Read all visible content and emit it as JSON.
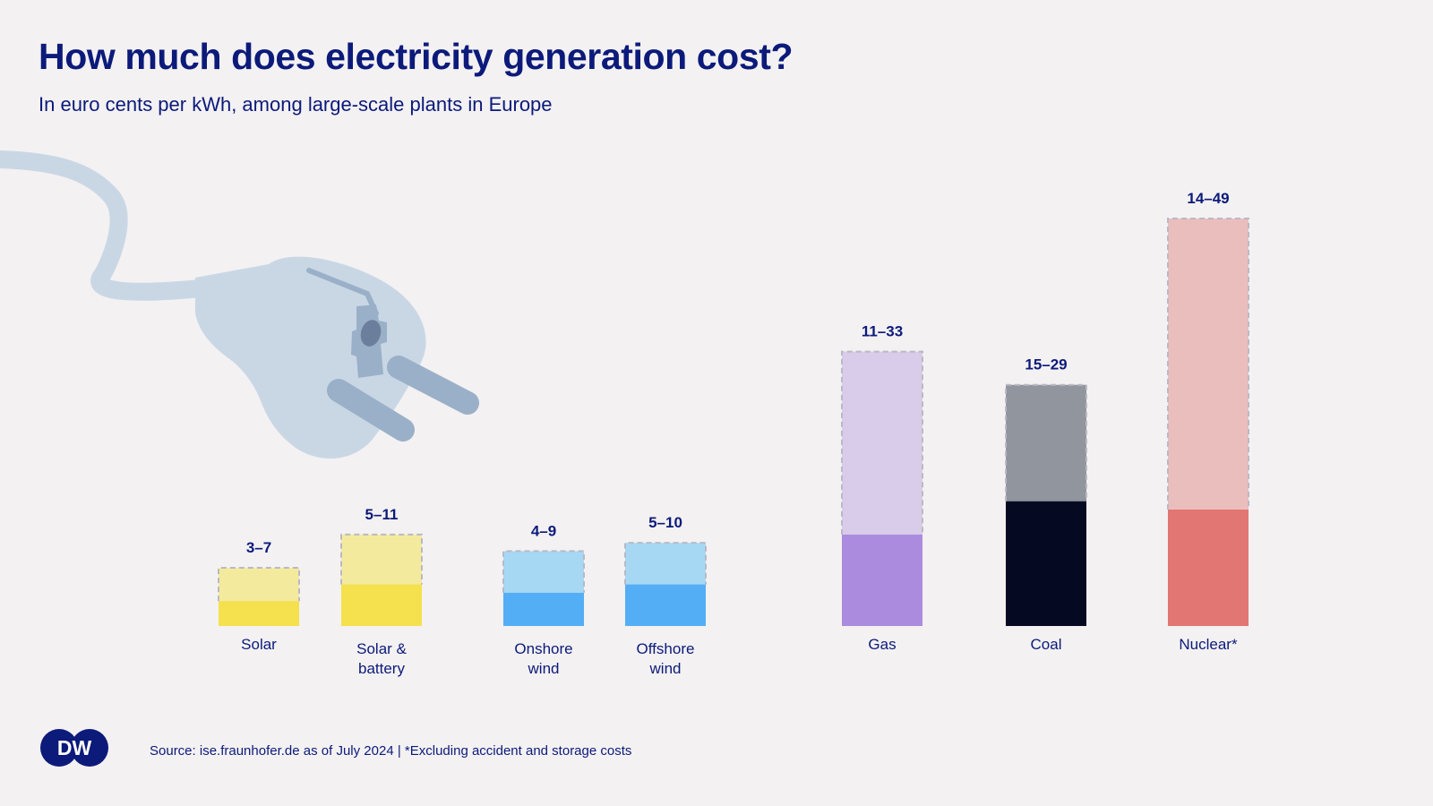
{
  "chart_data": {
    "type": "bar",
    "title": "How much does electricity generation cost?",
    "subtitle": "In euro cents per kWh, among large-scale plants in Europe",
    "unit": "euro cents per kWh",
    "ylim": [
      0,
      49
    ],
    "categories": [
      {
        "id": "solar",
        "label_lines": [
          "Solar"
        ],
        "range_label": "3–7",
        "low": 3,
        "high": 7,
        "color_low": "#f5e04d",
        "color_high": "#f4ea9d"
      },
      {
        "id": "solar-battery",
        "label_lines": [
          "Solar &",
          "battery"
        ],
        "range_label": "5–11",
        "low": 5,
        "high": 11,
        "color_low": "#f5e04d",
        "color_high": "#f4ea9d"
      },
      {
        "id": "onshore-wind",
        "label_lines": [
          "Onshore",
          "wind"
        ],
        "range_label": "4–9",
        "low": 4,
        "high": 9,
        "color_low": "#54aef5",
        "color_high": "#a6d8f4"
      },
      {
        "id": "offshore-wind",
        "label_lines": [
          "Offshore",
          "wind"
        ],
        "range_label": "5–10",
        "low": 5,
        "high": 10,
        "color_low": "#54aef5",
        "color_high": "#a6d8f4"
      },
      {
        "id": "gas",
        "label_lines": [
          "Gas"
        ],
        "range_label": "11–33",
        "low": 11,
        "high": 33,
        "color_low": "#ab8bdd",
        "color_high": "#d9cbea"
      },
      {
        "id": "coal",
        "label_lines": [
          "Coal"
        ],
        "range_label": "15–29",
        "low": 15,
        "high": 29,
        "color_low": "#050a22",
        "color_high": "#91959e"
      },
      {
        "id": "nuclear",
        "label_lines": [
          "Nuclear*"
        ],
        "range_label": "14–49",
        "low": 14,
        "high": 49,
        "color_low": "#e17672",
        "color_high": "#ebbebe"
      }
    ]
  },
  "footer": {
    "logo_text": "DW",
    "source": "Source: ise.fraunhofer.de as of July 2024 | *Excluding accident and storage costs"
  },
  "colors": {
    "text": "#0c1a7a",
    "background": "#f3f1f2",
    "plug": "#c9d7e5",
    "plug_dark": "#9ab0c8",
    "dash": "#b9b9c4"
  },
  "illustration": {
    "icon": "power-plug-icon"
  }
}
